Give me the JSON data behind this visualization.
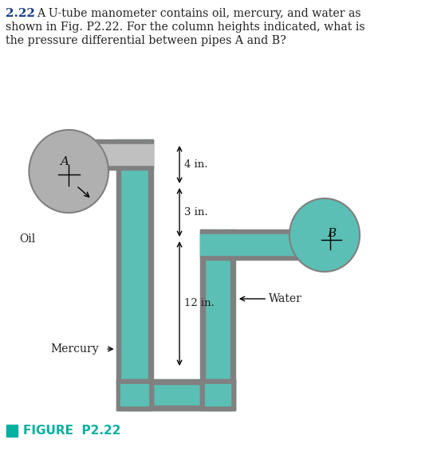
{
  "title_number": "2.22",
  "title_line1": "2.22  A U-tube manometer contains oil, mercury, and water as",
  "title_line2": "shown in Fig. P2.22. For the column heights indicated, what is",
  "title_line3": "the pressure differential between pipes A and B?",
  "figure_label": "FIGURE  P2.22",
  "figure_label_color": "#00b0a0",
  "bg_color": "#ffffff",
  "tube_fill_color": "#5bbfb5",
  "tube_wall_color": "#808080",
  "pipe_A_circle_color": "#b0b0b0",
  "pipe_B_circle_color": "#5bbfb5",
  "dim_label_4in": "4 in.",
  "dim_label_3in": "3 in.",
  "dim_label_12in": "12 in.",
  "label_oil": "Oil",
  "label_mercury": "Mercury",
  "label_water": "Water",
  "label_A": "A",
  "label_B": "B",
  "text_color": "#222222",
  "title_number_color": "#1a3a8a"
}
